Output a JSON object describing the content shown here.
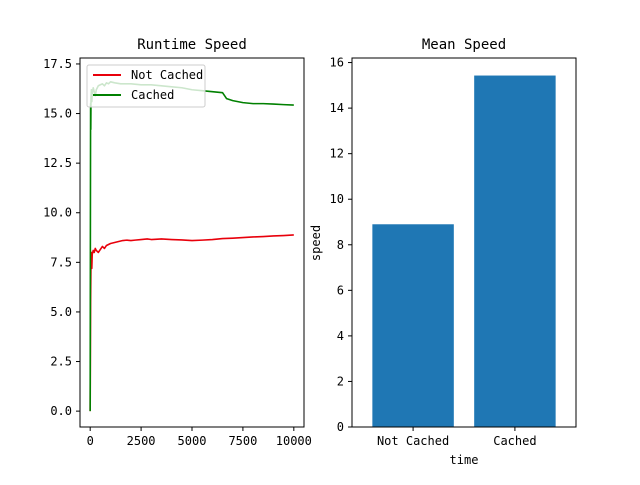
{
  "colors": {
    "not_cached": "#e8000b",
    "cached": "#008000",
    "bar": "#1f77b4",
    "axes": "#000000",
    "background": "#ffffff"
  },
  "chart_data": [
    {
      "type": "line",
      "title": "Runtime Speed",
      "xlabel": "",
      "ylabel": "",
      "xlim": [
        -500,
        10500
      ],
      "ylim": [
        -0.8,
        17.8
      ],
      "xticks": [
        0,
        2500,
        5000,
        7500,
        10000
      ],
      "xtick_labels": [
        "0",
        "2500",
        "5000",
        "7500",
        "10000"
      ],
      "yticks": [
        0.0,
        2.5,
        5.0,
        7.5,
        10.0,
        12.5,
        15.0,
        17.5
      ],
      "ytick_labels": [
        "0.0",
        "2.5",
        "5.0",
        "7.5",
        "10.0",
        "12.5",
        "15.0",
        "17.5"
      ],
      "legend": {
        "placement": "upper-left",
        "entries": [
          "Not Cached",
          "Cached"
        ]
      },
      "grid": false,
      "series": [
        {
          "name": "Not Cached",
          "color_key": "not_cached",
          "x": [
            0,
            20,
            40,
            60,
            80,
            100,
            150,
            200,
            250,
            300,
            400,
            500,
            600,
            700,
            800,
            900,
            1000,
            1200,
            1400,
            1600,
            1800,
            2000,
            2200,
            2500,
            2800,
            3000,
            3500,
            4000,
            4500,
            5000,
            5500,
            6000,
            6500,
            7000,
            7500,
            8000,
            8500,
            9000,
            9500,
            10000
          ],
          "y": [
            0.0,
            5.5,
            7.6,
            8.0,
            7.2,
            7.9,
            8.1,
            8.0,
            8.2,
            8.1,
            8.0,
            8.15,
            8.3,
            8.2,
            8.35,
            8.4,
            8.45,
            8.5,
            8.55,
            8.6,
            8.62,
            8.6,
            8.62,
            8.65,
            8.68,
            8.65,
            8.68,
            8.65,
            8.63,
            8.6,
            8.62,
            8.65,
            8.7,
            8.72,
            8.75,
            8.78,
            8.8,
            8.83,
            8.85,
            8.88
          ]
        },
        {
          "name": "Cached",
          "color_key": "cached",
          "x": [
            0,
            10,
            20,
            30,
            40,
            60,
            80,
            100,
            150,
            200,
            250,
            300,
            400,
            500,
            600,
            700,
            800,
            900,
            1000,
            1200,
            1500,
            2000,
            2500,
            3000,
            3500,
            4000,
            4500,
            5000,
            5500,
            6000,
            6500,
            6700,
            7000,
            7500,
            8000,
            8500,
            9000,
            9500,
            10000
          ],
          "y": [
            0.0,
            9.0,
            15.5,
            14.2,
            15.8,
            16.2,
            15.6,
            16.0,
            16.3,
            16.1,
            15.9,
            16.2,
            16.4,
            16.45,
            16.5,
            16.4,
            16.55,
            16.5,
            16.6,
            16.55,
            16.5,
            16.5,
            16.45,
            16.45,
            16.4,
            16.35,
            16.3,
            16.2,
            16.15,
            16.1,
            16.05,
            15.75,
            15.65,
            15.55,
            15.5,
            15.5,
            15.48,
            15.45,
            15.43
          ]
        }
      ]
    },
    {
      "type": "bar",
      "title": "Mean Speed",
      "xlabel": "time",
      "ylabel": "speed",
      "categories": [
        "Not Cached",
        "Cached"
      ],
      "values": [
        8.9,
        15.43
      ],
      "ylim": [
        0,
        16.2
      ],
      "yticks": [
        0,
        2,
        4,
        6,
        8,
        10,
        12,
        14,
        16
      ],
      "ytick_labels": [
        "0",
        "2",
        "4",
        "6",
        "8",
        "10",
        "12",
        "14",
        "16"
      ],
      "grid": false
    }
  ]
}
